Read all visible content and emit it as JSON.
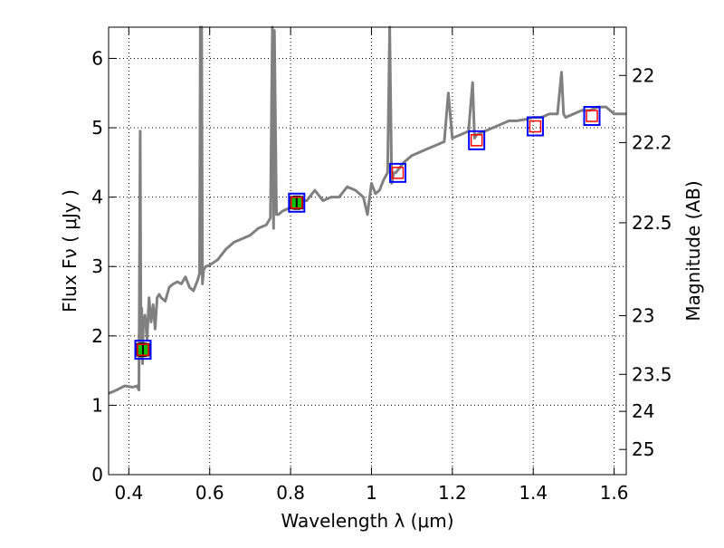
{
  "chart_data": {
    "type": "line",
    "xlabel": "Wavelength  λ (μm)",
    "ylabel": "Flux  Fν  ( μJy )",
    "ylabel_right": "Magnitude (AB)",
    "xlim": [
      0.35,
      1.63
    ],
    "ylim": [
      0,
      6.45
    ],
    "xticks": [
      0.4,
      0.6,
      0.8,
      1.0,
      1.2,
      1.4,
      1.6
    ],
    "xtick_labels": [
      "0.4",
      "0.6",
      "0.8",
      "1",
      "1.2",
      "1.4",
      "1.6"
    ],
    "yticks": [
      0,
      1,
      2,
      3,
      4,
      5,
      6
    ],
    "ytick_labels": [
      "0",
      "1",
      "2",
      "3",
      "4",
      "5",
      "6"
    ],
    "right_ticks": [
      {
        "mag": 22,
        "label": "22"
      },
      {
        "mag": 22.2,
        "label": "22.2"
      },
      {
        "mag": 22.5,
        "label": "22.5"
      },
      {
        "mag": 23,
        "label": "23"
      },
      {
        "mag": 23.5,
        "label": "23.5"
      },
      {
        "mag": 24,
        "label": "24"
      },
      {
        "mag": 25,
        "label": "25"
      }
    ],
    "grid": true,
    "colors": {
      "model": "#808080",
      "box": "#0000ff",
      "model_box": "#ff0000",
      "obs_fill": "#00c000"
    },
    "model_spectrum": {
      "name": "SED model",
      "x": [
        0.35,
        0.37,
        0.39,
        0.41,
        0.42,
        0.425,
        0.428,
        0.43,
        0.432,
        0.434,
        0.436,
        0.44,
        0.445,
        0.45,
        0.455,
        0.46,
        0.465,
        0.47,
        0.475,
        0.48,
        0.49,
        0.5,
        0.51,
        0.52,
        0.53,
        0.54,
        0.55,
        0.56,
        0.57,
        0.575,
        0.577,
        0.578,
        0.58,
        0.582,
        0.585,
        0.59,
        0.6,
        0.62,
        0.64,
        0.66,
        0.68,
        0.7,
        0.72,
        0.74,
        0.75,
        0.755,
        0.758,
        0.76,
        0.765,
        0.77,
        0.78,
        0.8,
        0.82,
        0.84,
        0.86,
        0.88,
        0.9,
        0.92,
        0.94,
        0.96,
        0.98,
        0.99,
        1.0,
        1.01,
        1.02,
        1.03,
        1.04,
        1.045,
        1.05,
        1.055,
        1.06,
        1.08,
        1.1,
        1.12,
        1.14,
        1.16,
        1.18,
        1.19,
        1.2,
        1.22,
        1.24,
        1.25,
        1.255,
        1.26,
        1.28,
        1.3,
        1.32,
        1.34,
        1.36,
        1.38,
        1.4,
        1.42,
        1.44,
        1.46,
        1.47,
        1.475,
        1.48,
        1.5,
        1.52,
        1.54,
        1.56,
        1.58,
        1.6,
        1.63
      ],
      "y": [
        1.17,
        1.22,
        1.28,
        1.26,
        1.28,
        1.22,
        4.95,
        1.7,
        2.4,
        1.6,
        2.2,
        2.3,
        1.95,
        2.55,
        2.2,
        2.45,
        2.1,
        2.55,
        2.6,
        2.55,
        2.5,
        2.7,
        2.75,
        2.78,
        2.75,
        2.85,
        2.7,
        2.65,
        2.8,
        2.9,
        6.45,
        2.9,
        6.45,
        2.75,
        2.95,
        3.0,
        3.02,
        3.1,
        3.25,
        3.35,
        3.4,
        3.45,
        3.55,
        3.6,
        3.7,
        6.45,
        3.55,
        6.4,
        3.75,
        3.75,
        3.8,
        3.85,
        3.95,
        3.95,
        4.1,
        3.95,
        4.0,
        4.0,
        4.15,
        4.1,
        4.0,
        3.75,
        4.2,
        4.05,
        4.1,
        4.25,
        4.35,
        6.45,
        4.2,
        4.35,
        4.35,
        4.5,
        4.6,
        4.65,
        4.7,
        4.75,
        4.8,
        5.5,
        4.85,
        4.9,
        4.95,
        5.65,
        4.85,
        4.9,
        4.95,
        5.0,
        5.05,
        5.1,
        5.1,
        5.12,
        5.15,
        5.15,
        5.2,
        5.2,
        5.8,
        5.2,
        5.15,
        5.2,
        5.25,
        5.25,
        5.3,
        5.3,
        5.2,
        5.2
      ]
    },
    "observations": {
      "name": "Observed photometry",
      "x": [
        0.435,
        0.815
      ],
      "y": [
        1.8,
        3.92
      ],
      "yerr": [
        0.09,
        0.09
      ]
    },
    "model_photometry": {
      "name": "Model photometry",
      "x": [
        0.435,
        0.815,
        1.065,
        1.26,
        1.405,
        1.545
      ],
      "y": [
        1.8,
        3.92,
        4.35,
        4.82,
        5.02,
        5.17
      ]
    }
  }
}
